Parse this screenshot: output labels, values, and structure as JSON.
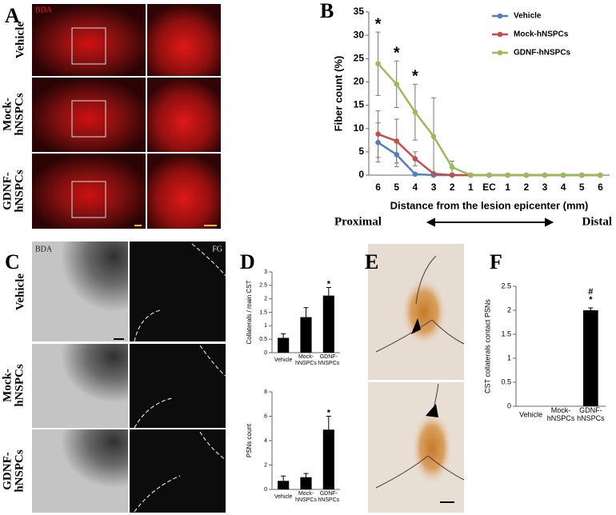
{
  "panels": {
    "A": {
      "letter": "A",
      "stain": "BDA",
      "rows": [
        "Vehicle",
        "Mock-hNSPCs",
        "GDNF-hNSPCs"
      ]
    },
    "C": {
      "letter": "C",
      "stains": [
        "BDA",
        "FG"
      ],
      "rows": [
        "Vehicle",
        "Mock-hNSPCs",
        "GDNF-hNSPCs"
      ]
    },
    "E": {
      "letter": "E"
    }
  },
  "chart_data": [
    {
      "letter": "B",
      "type": "line",
      "categories": [
        "6",
        "5",
        "4",
        "3",
        "2",
        "1",
        "EC",
        "1",
        "2",
        "3",
        "4",
        "5",
        "6"
      ],
      "series": [
        {
          "name": "Vehicle",
          "color": "#4f81bd",
          "values": [
            7,
            4.4,
            0.2,
            0,
            0,
            0,
            0,
            0,
            0,
            0,
            0,
            0,
            0
          ],
          "errors": [
            4.2,
            2.6,
            null,
            null,
            null,
            null,
            null,
            null,
            null,
            null,
            null,
            null,
            null
          ]
        },
        {
          "name": "Mock-hNSPCs",
          "color": "#c0504d",
          "values": [
            8.8,
            7.3,
            3.5,
            0.3,
            0,
            0,
            0,
            0,
            0,
            0,
            0,
            0,
            0
          ],
          "errors": [
            5,
            4.7,
            1.5,
            null,
            null,
            null,
            null,
            null,
            null,
            null,
            null,
            null,
            null
          ]
        },
        {
          "name": "GDNF-hNSPCs",
          "color": "#9bbb59",
          "values": [
            23.9,
            19.5,
            13.5,
            8.3,
            1.7,
            0,
            0,
            0,
            0,
            0,
            0,
            0,
            0
          ],
          "errors": [
            6.8,
            5,
            6,
            8.3,
            1.3,
            null,
            null,
            null,
            null,
            null,
            null,
            null,
            null
          ]
        }
      ],
      "ylim": [
        0,
        35
      ],
      "yticks": [
        0,
        5,
        10,
        15,
        20,
        25,
        30,
        35
      ],
      "y_label": "Fiber count (%)",
      "x_label": "Distance from the lesion epicenter (mm)",
      "direction_labels": [
        "Proximal",
        "Distal"
      ],
      "annotations": [
        "*",
        "*",
        "*"
      ],
      "legend": "upper right"
    },
    {
      "letter": "D",
      "type": "bar",
      "categories": [
        "Vehicle",
        "Mock-hNSPCs",
        "GDNF-hNSPCs"
      ],
      "values": [
        0.55,
        1.32,
        2.12
      ],
      "errors": [
        0.15,
        0.35,
        0.3
      ],
      "color": "#000000",
      "ylim": [
        0,
        3
      ],
      "yticks": [
        0,
        0.5,
        1,
        1.5,
        2,
        2.5,
        3
      ],
      "y_label": "Collaterals / main CST",
      "annotations": [
        "*"
      ]
    },
    {
      "type": "bar",
      "categories": [
        "Vehicle",
        "Mock-hNSPCs",
        "GDNF-hNSPCs"
      ],
      "values": [
        0.7,
        1,
        4.9
      ],
      "errors": [
        0.4,
        0.3,
        1.1
      ],
      "color": "#000000",
      "ylim": [
        0,
        8
      ],
      "yticks": [
        0,
        2,
        4,
        6,
        8
      ],
      "y_label": "PSNs count",
      "annotations": [
        "*"
      ]
    },
    {
      "letter": "F",
      "type": "bar",
      "categories": [
        "Vehicle",
        "Mock-hNSPCs",
        "GDNF-hNSPCs"
      ],
      "values": [
        0,
        0,
        2
      ],
      "errors": [
        null,
        null,
        0.05
      ],
      "color": "#000000",
      "ylim": [
        0,
        2.5
      ],
      "yticks": [
        0,
        0.5,
        1,
        1.5,
        2,
        2.5
      ],
      "y_label": "CST collaterals contact PSNs",
      "annotations": [
        "*",
        "#"
      ]
    }
  ]
}
